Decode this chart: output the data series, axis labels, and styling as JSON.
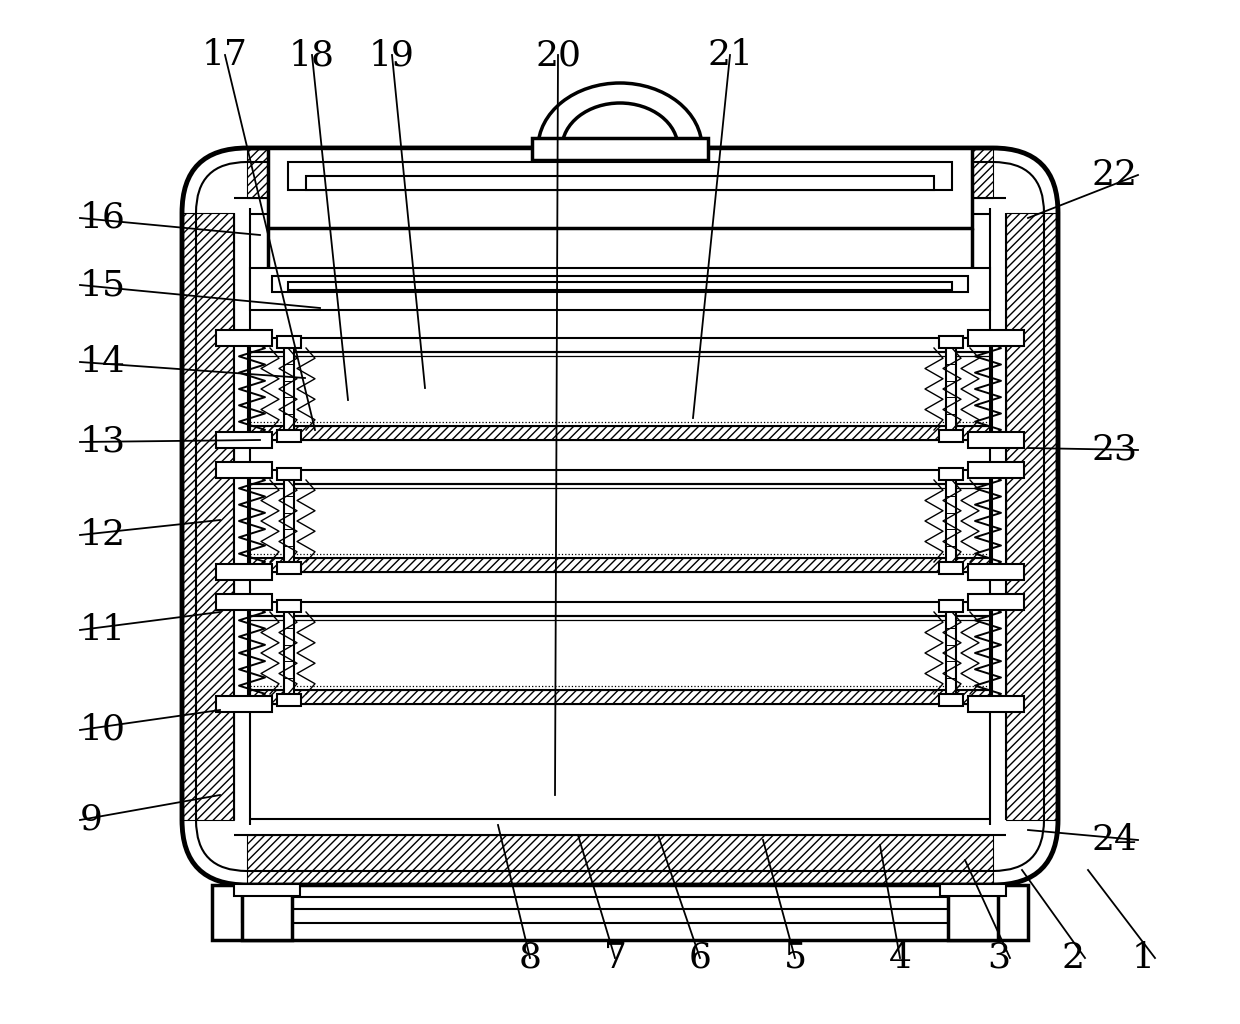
{
  "bg": "#ffffff",
  "lw1": 1.5,
  "lw2": 2.5,
  "lw3": 3.5,
  "fs": 26,
  "labels": [
    [
      "1",
      1155,
      958,
      1088,
      870
    ],
    [
      "2",
      1085,
      958,
      1022,
      870
    ],
    [
      "3",
      1010,
      958,
      965,
      860
    ],
    [
      "4",
      900,
      958,
      880,
      845
    ],
    [
      "5",
      795,
      958,
      763,
      840
    ],
    [
      "6",
      700,
      958,
      658,
      835
    ],
    [
      "7",
      615,
      958,
      578,
      835
    ],
    [
      "8",
      530,
      958,
      498,
      825
    ],
    [
      "9",
      80,
      820,
      220,
      795
    ],
    [
      "10",
      80,
      730,
      220,
      710
    ],
    [
      "11",
      80,
      630,
      220,
      612
    ],
    [
      "12",
      80,
      535,
      220,
      520
    ],
    [
      "13",
      80,
      442,
      260,
      440
    ],
    [
      "14",
      80,
      362,
      305,
      378
    ],
    [
      "15",
      80,
      285,
      320,
      308
    ],
    [
      "16",
      80,
      218,
      260,
      235
    ],
    [
      "17",
      225,
      55,
      315,
      430
    ],
    [
      "18",
      312,
      55,
      348,
      400
    ],
    [
      "19",
      392,
      55,
      425,
      388
    ],
    [
      "20",
      558,
      55,
      555,
      795
    ],
    [
      "21",
      730,
      55,
      693,
      418
    ],
    [
      "22",
      1138,
      175,
      1028,
      218
    ],
    [
      "23",
      1138,
      450,
      1028,
      448
    ],
    [
      "24",
      1138,
      840,
      1028,
      830
    ]
  ]
}
